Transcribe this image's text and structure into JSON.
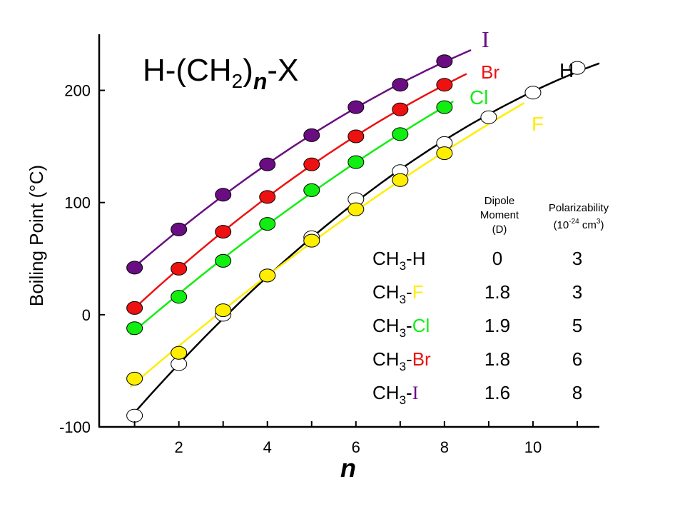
{
  "chart_data": {
    "type": "scatter",
    "title_parts": {
      "prefix": "H-(CH",
      "sub1": "2",
      "mid": ")",
      "sub2": "n",
      "suffix": "-X"
    },
    "xlabel": "n",
    "ylabel": "Boiling Point (°C)",
    "xlim": [
      0.2,
      11.5
    ],
    "ylim": [
      -100,
      250
    ],
    "x_ticks": [
      1,
      2,
      3,
      4,
      5,
      6,
      7,
      8,
      9,
      10,
      11
    ],
    "x_tick_labels": [
      {
        "x": 2,
        "label": "2"
      },
      {
        "x": 4,
        "label": "4"
      },
      {
        "x": 6,
        "label": "6"
      },
      {
        "x": 8,
        "label": "8"
      },
      {
        "x": 10,
        "label": "10"
      }
    ],
    "y_ticks": [
      -100,
      0,
      100,
      200
    ],
    "y_tick_labels": [
      "-100",
      "0",
      "100",
      "200"
    ],
    "grid": false,
    "series": [
      {
        "name": "I",
        "color": "#6a0d83",
        "x": [
          1,
          2,
          3,
          4,
          5,
          6,
          7,
          8
        ],
        "y": [
          42,
          76,
          107,
          134,
          160,
          185,
          205,
          226
        ]
      },
      {
        "name": "Br",
        "color": "#ee1111",
        "x": [
          1,
          2,
          3,
          4,
          5,
          6,
          7,
          8
        ],
        "y": [
          6,
          41,
          74,
          105,
          134,
          159,
          183,
          205
        ]
      },
      {
        "name": "Cl",
        "color": "#11ee11",
        "x": [
          1,
          2,
          3,
          4,
          5,
          6,
          7,
          8
        ],
        "y": [
          -12,
          16,
          48,
          81,
          111,
          136,
          161,
          185
        ]
      },
      {
        "name": "H",
        "color": "#ffffff",
        "x": [
          1,
          2,
          3,
          4,
          5,
          6,
          7,
          8,
          9,
          10,
          11
        ],
        "y": [
          -90,
          -44,
          0,
          35,
          69,
          103,
          128,
          153,
          176,
          198,
          220
        ]
      },
      {
        "name": "F",
        "color": "#ffee00",
        "x": [
          1,
          2,
          3,
          4,
          5,
          6,
          7,
          8
        ],
        "y": [
          -57,
          -34,
          4,
          35,
          66,
          94,
          120,
          144
        ]
      }
    ],
    "curves": [
      {
        "series": "I",
        "x_range": [
          1,
          8.6
        ]
      },
      {
        "series": "Br",
        "x_range": [
          1,
          8.5
        ]
      },
      {
        "series": "Cl",
        "x_range": [
          0.9,
          8.2
        ]
      },
      {
        "series": "H",
        "x_range": [
          1,
          11.5
        ]
      },
      {
        "series": "F",
        "x_range": [
          0.9,
          9.8
        ]
      }
    ],
    "table": {
      "col_headers": [
        {
          "lines": [
            "Dipole",
            "Moment",
            "(D)"
          ]
        },
        {
          "lines": [
            "Polarizability"
          ],
          "unit_prefix": "(10",
          "unit_exp": "-24",
          "unit_mid": " cm",
          "unit_exp2": "3",
          "unit_suffix": ")"
        }
      ],
      "rows": [
        {
          "base": "CH",
          "sub": "3",
          "dash": "-",
          "x": "H",
          "x_color": "#000000",
          "dipole": "0",
          "polar": "3"
        },
        {
          "base": "CH",
          "sub": "3",
          "dash": "-",
          "x": "F",
          "x_color": "#ffee00",
          "dipole": "1.8",
          "polar": "3"
        },
        {
          "base": "CH",
          "sub": "3",
          "dash": "-",
          "x": "Cl",
          "x_color": "#11ee11",
          "dipole": "1.9",
          "polar": "5"
        },
        {
          "base": "CH",
          "sub": "3",
          "dash": "-",
          "x": "Br",
          "x_color": "#ee1111",
          "dipole": "1.8",
          "polar": "6"
        },
        {
          "base": "CH",
          "sub": "3",
          "dash": "-",
          "x": "I",
          "x_color": "#6a0d83",
          "dipole": "1.6",
          "polar": "8"
        }
      ]
    }
  }
}
